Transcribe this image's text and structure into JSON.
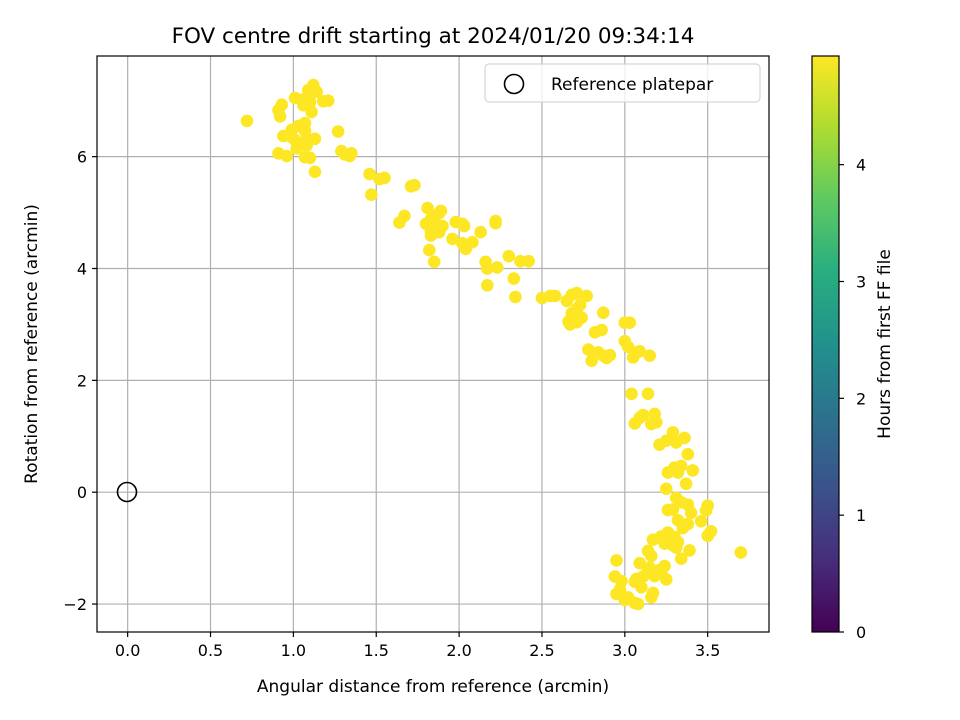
{
  "chart_data": {
    "type": "scatter",
    "title": "FOV centre drift starting at 2024/01/20 09:34:14",
    "xlabel": "Angular distance from reference (arcmin)",
    "ylabel": "Rotation from reference (arcmin)",
    "xlim": [
      -0.185,
      3.87
    ],
    "ylim": [
      -2.5,
      7.8
    ],
    "x_ticks": [
      0.0,
      0.5,
      1.0,
      1.5,
      2.0,
      2.5,
      3.0,
      3.5
    ],
    "x_tick_labels": [
      "0.0",
      "0.5",
      "1.0",
      "1.5",
      "2.0",
      "2.5",
      "3.0",
      "3.5"
    ],
    "y_ticks": [
      -2,
      0,
      2,
      4,
      6
    ],
    "y_tick_labels": [
      "−2",
      "0",
      "2",
      "4",
      "6"
    ],
    "grid": true,
    "legend": {
      "position": "top-right",
      "entries": [
        "Reference platepar"
      ]
    },
    "reference_point": {
      "x": 0.0,
      "y": 0.0
    },
    "colorbar": {
      "label": "Hours from first FF file",
      "range": [
        0,
        4.93
      ],
      "ticks": [
        0,
        1,
        2,
        3,
        4
      ],
      "tick_labels": [
        "0",
        "1",
        "2",
        "3",
        "4"
      ],
      "colormap": "viridis"
    },
    "series": [
      {
        "name": "FF files",
        "columns": [
          "x",
          "y",
          "hours"
        ],
        "points": [
          [
            1.12,
            7.28
          ],
          [
            1.09,
            7.19
          ],
          [
            1.14,
            7.16
          ],
          [
            1.05,
            7.02
          ],
          [
            1.01,
            7.05
          ],
          [
            1.1,
            6.98
          ],
          [
            1.18,
            6.99
          ],
          [
            1.21,
            7.0
          ],
          [
            1.06,
            6.92
          ],
          [
            1.11,
            6.8
          ],
          [
            0.93,
            6.93
          ],
          [
            0.91,
            6.83
          ],
          [
            0.92,
            6.72
          ],
          [
            0.72,
            6.64
          ],
          [
            1.07,
            6.6
          ],
          [
            1.03,
            6.55
          ],
          [
            0.99,
            6.48
          ],
          [
            1.07,
            6.46
          ],
          [
            0.94,
            6.37
          ],
          [
            0.99,
            6.35
          ],
          [
            1.01,
            6.3
          ],
          [
            1.09,
            6.31
          ],
          [
            1.13,
            6.32
          ],
          [
            1.05,
            6.25
          ],
          [
            1.08,
            6.2
          ],
          [
            1.02,
            6.15
          ],
          [
            0.91,
            6.06
          ],
          [
            0.96,
            6.01
          ],
          [
            1.07,
            5.99
          ],
          [
            1.1,
            5.98
          ],
          [
            1.13,
            5.73
          ],
          [
            1.27,
            6.45
          ],
          [
            1.29,
            6.1
          ],
          [
            1.31,
            6.04
          ],
          [
            1.35,
            6.06
          ],
          [
            1.34,
            6.01
          ],
          [
            1.46,
            5.69
          ],
          [
            1.52,
            5.6
          ],
          [
            1.55,
            5.62
          ],
          [
            1.47,
            5.32
          ],
          [
            1.71,
            5.47
          ],
          [
            1.73,
            5.49
          ],
          [
            1.67,
            4.94
          ],
          [
            1.64,
            4.82
          ],
          [
            1.81,
            5.08
          ],
          [
            1.85,
            4.95
          ],
          [
            1.88,
            4.99
          ],
          [
            1.89,
            5.03
          ],
          [
            1.83,
            4.88
          ],
          [
            1.8,
            4.8
          ],
          [
            1.86,
            4.8
          ],
          [
            1.9,
            4.76
          ],
          [
            1.83,
            4.66
          ],
          [
            1.83,
            4.59
          ],
          [
            1.88,
            4.65
          ],
          [
            1.98,
            4.83
          ],
          [
            2.02,
            4.8
          ],
          [
            2.03,
            4.76
          ],
          [
            2.13,
            4.65
          ],
          [
            2.22,
            4.81
          ],
          [
            2.22,
            4.85
          ],
          [
            1.96,
            4.53
          ],
          [
            2.02,
            4.45
          ],
          [
            2.04,
            4.35
          ],
          [
            2.08,
            4.47
          ],
          [
            1.82,
            4.33
          ],
          [
            1.85,
            4.12
          ],
          [
            2.16,
            4.12
          ],
          [
            2.17,
            4.0
          ],
          [
            2.23,
            4.02
          ],
          [
            2.17,
            3.7
          ],
          [
            2.3,
            4.22
          ],
          [
            2.37,
            4.13
          ],
          [
            2.42,
            4.13
          ],
          [
            2.33,
            3.82
          ],
          [
            2.34,
            3.49
          ],
          [
            2.5,
            3.47
          ],
          [
            2.55,
            3.51
          ],
          [
            2.58,
            3.51
          ],
          [
            2.65,
            3.42
          ],
          [
            2.68,
            3.53
          ],
          [
            2.71,
            3.56
          ],
          [
            2.73,
            3.35
          ],
          [
            2.71,
            3.28
          ],
          [
            2.77,
            3.51
          ],
          [
            2.68,
            3.2
          ],
          [
            2.66,
            3.05
          ],
          [
            2.67,
            3.0
          ],
          [
            2.71,
            3.04
          ],
          [
            2.74,
            3.12
          ],
          [
            2.87,
            3.21
          ],
          [
            2.82,
            2.86
          ],
          [
            2.86,
            2.9
          ],
          [
            3.0,
            3.03
          ],
          [
            3.03,
            3.03
          ],
          [
            3.0,
            2.7
          ],
          [
            3.02,
            2.6
          ],
          [
            2.78,
            2.55
          ],
          [
            2.8,
            2.35
          ],
          [
            2.84,
            2.5
          ],
          [
            2.87,
            2.44
          ],
          [
            2.89,
            2.4
          ],
          [
            2.91,
            2.45
          ],
          [
            3.07,
            2.5
          ],
          [
            3.09,
            2.52
          ],
          [
            3.05,
            2.41
          ],
          [
            3.15,
            2.44
          ],
          [
            3.04,
            1.76
          ],
          [
            3.14,
            1.76
          ],
          [
            3.09,
            1.33
          ],
          [
            3.06,
            1.23
          ],
          [
            3.11,
            1.38
          ],
          [
            3.18,
            1.4
          ],
          [
            3.16,
            1.22
          ],
          [
            3.19,
            1.25
          ],
          [
            3.29,
            1.07
          ],
          [
            3.25,
            0.92
          ],
          [
            3.21,
            0.85
          ],
          [
            3.31,
            0.89
          ],
          [
            3.36,
            0.97
          ],
          [
            3.38,
            0.68
          ],
          [
            3.34,
            0.47
          ],
          [
            3.3,
            0.44
          ],
          [
            3.26,
            0.35
          ],
          [
            3.32,
            0.35
          ],
          [
            3.37,
            0.15
          ],
          [
            3.41,
            0.39
          ],
          [
            3.25,
            0.06
          ],
          [
            3.31,
            -0.1
          ],
          [
            3.34,
            -0.18
          ],
          [
            3.29,
            -0.31
          ],
          [
            3.26,
            -0.32
          ],
          [
            3.38,
            -0.22
          ],
          [
            3.4,
            -0.37
          ],
          [
            3.38,
            -0.57
          ],
          [
            3.32,
            -0.5
          ],
          [
            3.35,
            -0.64
          ],
          [
            3.26,
            -0.72
          ],
          [
            3.22,
            -0.79
          ],
          [
            3.3,
            -0.8
          ],
          [
            3.32,
            -0.89
          ],
          [
            3.29,
            -0.95
          ],
          [
            3.31,
            -0.99
          ],
          [
            3.24,
            -0.92
          ],
          [
            3.39,
            -1.04
          ],
          [
            3.17,
            -0.85
          ],
          [
            3.14,
            -1.05
          ],
          [
            3.34,
            -1.19
          ],
          [
            3.5,
            -0.24
          ],
          [
            3.49,
            -0.33
          ],
          [
            3.46,
            -0.52
          ],
          [
            3.5,
            -0.78
          ],
          [
            3.52,
            -0.7
          ],
          [
            3.7,
            -1.08
          ],
          [
            3.16,
            -1.14
          ],
          [
            3.09,
            -1.27
          ],
          [
            3.15,
            -1.35
          ],
          [
            3.21,
            -1.39
          ],
          [
            3.24,
            -1.32
          ],
          [
            3.18,
            -1.5
          ],
          [
            3.22,
            -1.42
          ],
          [
            3.25,
            -1.56
          ],
          [
            3.13,
            -1.46
          ],
          [
            3.11,
            -1.51
          ],
          [
            3.07,
            -1.55
          ],
          [
            3.06,
            -1.6
          ],
          [
            2.95,
            -1.22
          ],
          [
            2.94,
            -1.51
          ],
          [
            2.98,
            -1.59
          ],
          [
            2.97,
            -1.74
          ],
          [
            2.95,
            -1.82
          ],
          [
            3.02,
            -1.88
          ],
          [
            3.0,
            -1.93
          ],
          [
            3.06,
            -1.98
          ],
          [
            3.08,
            -2.0
          ],
          [
            3.17,
            -1.8
          ],
          [
            3.16,
            -1.88
          ],
          [
            3.1,
            -1.7
          ]
        ]
      }
    ]
  }
}
